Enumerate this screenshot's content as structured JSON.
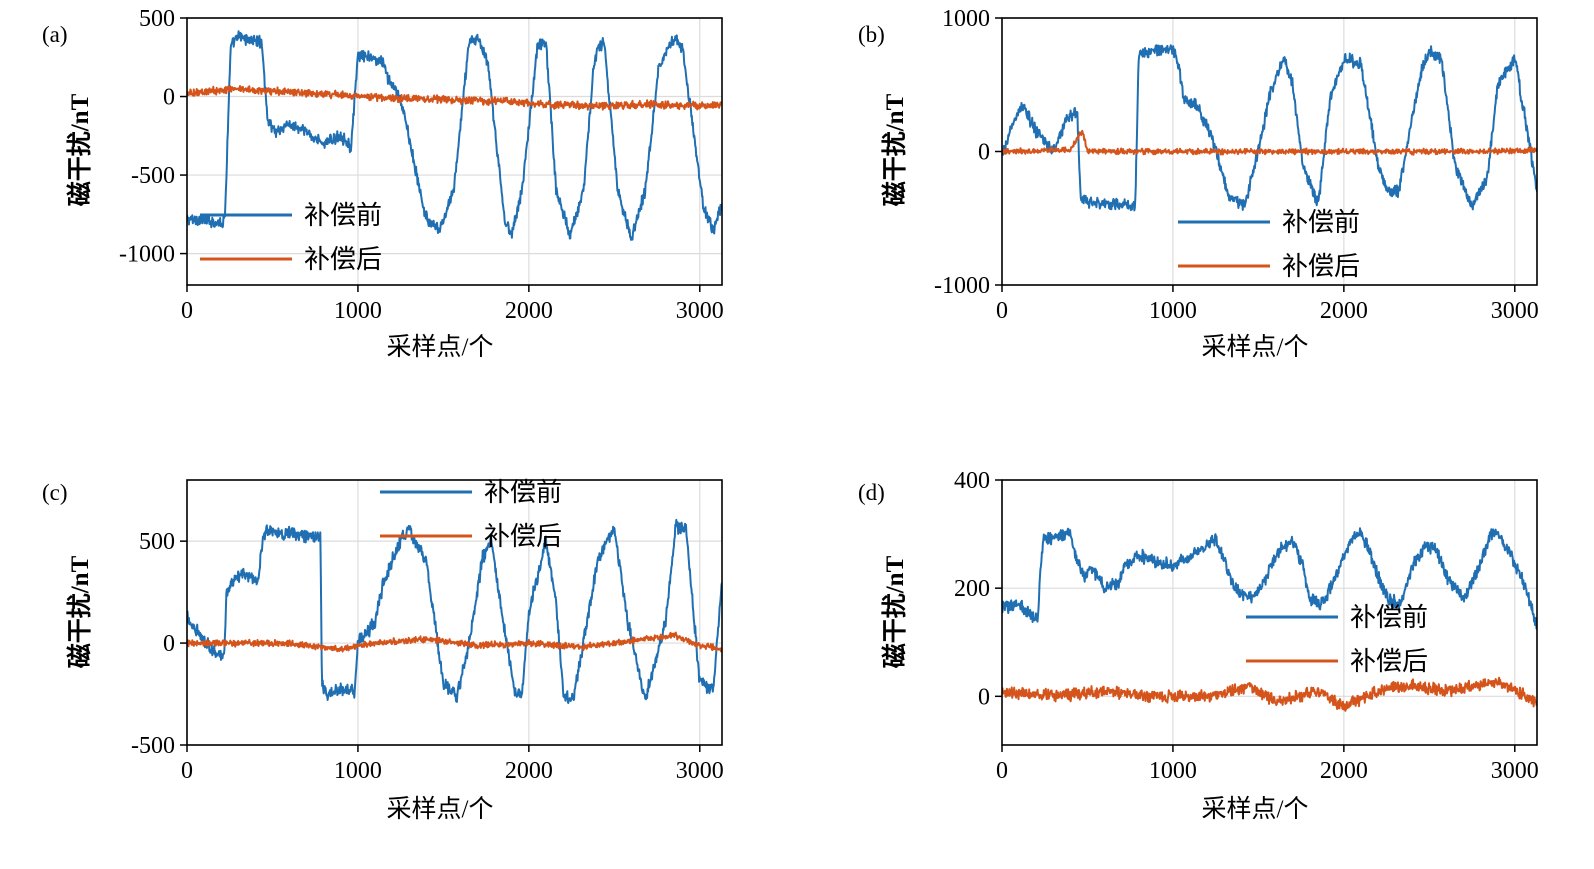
{
  "chart_data": [
    {
      "type": "line",
      "panel_label": "(a)",
      "xlabel": "采样点/个",
      "ylabel": "磁干扰/nT",
      "xlim": [
        0,
        3130
      ],
      "ylim": [
        -1200,
        500
      ],
      "xticks": [
        0,
        1000,
        2000,
        3000
      ],
      "yticks": [
        500,
        0,
        -500,
        -1000
      ],
      "grid": true,
      "legend_position": "lower-center",
      "series": [
        {
          "name": "补偿前",
          "color": "#1f6fb2",
          "noise": 45,
          "x": [
            0,
            210,
            222,
            255,
            300,
            420,
            440,
            470,
            520,
            600,
            700,
            800,
            900,
            960,
            1000,
            1020,
            1150,
            1180,
            1220,
            1270,
            1380,
            1420,
            1480,
            1560,
            1650,
            1700,
            1760,
            1860,
            1900,
            1960,
            2050,
            2100,
            2160,
            2240,
            2320,
            2380,
            2400,
            2440,
            2520,
            2600,
            2680,
            2760,
            2860,
            2900,
            2960,
            3020,
            3080,
            3130
          ],
          "y": [
            -780,
            -800,
            -760,
            310,
            380,
            350,
            330,
            -150,
            -220,
            -180,
            -230,
            -300,
            -250,
            -320,
            250,
            260,
            220,
            100,
            50,
            -100,
            -700,
            -820,
            -850,
            -600,
            350,
            380,
            200,
            -800,
            -870,
            -600,
            320,
            350,
            -600,
            -880,
            -600,
            200,
            300,
            350,
            -600,
            -900,
            -600,
            200,
            380,
            300,
            -200,
            -700,
            -850,
            -680
          ]
        },
        {
          "name": "补偿后",
          "color": "#d4541b",
          "noise": 28,
          "x": [
            0,
            300,
            600,
            900,
            1200,
            1500,
            1800,
            2100,
            2400,
            2700,
            3000,
            3130
          ],
          "y": [
            20,
            50,
            30,
            10,
            -10,
            -20,
            -30,
            -50,
            -60,
            -50,
            -60,
            -50
          ]
        }
      ]
    },
    {
      "type": "line",
      "panel_label": "(b)",
      "xlabel": "采样点/个",
      "ylabel": "磁干扰/nT",
      "xlim": [
        0,
        3130
      ],
      "ylim": [
        -1000,
        1000
      ],
      "xticks": [
        0,
        1000,
        2000,
        3000
      ],
      "yticks": [
        1000,
        0,
        -1000
      ],
      "grid": true,
      "legend_position": "lower-center",
      "series": [
        {
          "name": "补偿前",
          "color": "#1f6fb2",
          "noise": 55,
          "x": [
            0,
            60,
            120,
            200,
            300,
            380,
            440,
            460,
            500,
            780,
            800,
            820,
            1000,
            1040,
            1060,
            1100,
            1150,
            1230,
            1330,
            1420,
            1500,
            1570,
            1650,
            1700,
            1760,
            1850,
            1920,
            2000,
            2100,
            2200,
            2260,
            2320,
            2450,
            2500,
            2570,
            2650,
            2750,
            2840,
            2900,
            3000,
            3080,
            3130
          ],
          "y": [
            -50,
            200,
            350,
            150,
            0,
            250,
            300,
            -350,
            -380,
            -400,
            720,
            740,
            780,
            600,
            400,
            380,
            320,
            100,
            -350,
            -400,
            0,
            450,
            700,
            500,
            -100,
            -400,
            400,
            700,
            650,
            -100,
            -300,
            -300,
            600,
            750,
            700,
            -100,
            -400,
            -200,
            500,
            700,
            100,
            -300
          ]
        },
        {
          "name": "补偿后",
          "color": "#d4541b",
          "noise": 25,
          "x": [
            0,
            400,
            470,
            500,
            800,
            1200,
            1600,
            2000,
            2400,
            2800,
            3130
          ],
          "y": [
            0,
            10,
            150,
            0,
            0,
            0,
            0,
            0,
            0,
            0,
            10
          ]
        }
      ]
    },
    {
      "type": "line",
      "panel_label": "(c)",
      "xlabel": "采样点/个",
      "ylabel": "磁干扰/nT",
      "xlim": [
        0,
        3130
      ],
      "ylim": [
        -500,
        800
      ],
      "xticks": [
        0,
        1000,
        2000,
        3000
      ],
      "yticks": [
        500,
        0,
        -500
      ],
      "grid": true,
      "legend_position": "top-center",
      "series": [
        {
          "name": "补偿前",
          "color": "#1f6fb2",
          "noise": 40,
          "x": [
            0,
            100,
            160,
            200,
            218,
            230,
            330,
            420,
            440,
            460,
            780,
            790,
            810,
            900,
            980,
            1000,
            1100,
            1150,
            1250,
            1300,
            1400,
            1500,
            1580,
            1650,
            1730,
            1780,
            1850,
            1920,
            1960,
            2000,
            2100,
            2160,
            2200,
            2260,
            2340,
            2400,
            2450,
            2500,
            2580,
            2680,
            2800,
            2860,
            2920,
            3000,
            3080,
            3130
          ],
          "y": [
            120,
            20,
            -50,
            -60,
            -60,
            250,
            350,
            300,
            500,
            550,
            520,
            -200,
            -250,
            -230,
            -240,
            0,
            100,
            300,
            500,
            560,
            400,
            -200,
            -260,
            0,
            420,
            500,
            100,
            -250,
            -260,
            150,
            500,
            200,
            -250,
            -280,
            100,
            400,
            500,
            550,
            100,
            -280,
            100,
            580,
            550,
            -200,
            -230,
            300
          ]
        },
        {
          "name": "补偿后",
          "color": "#d4541b",
          "noise": 18,
          "x": [
            0,
            300,
            600,
            900,
            1100,
            1400,
            1700,
            2000,
            2300,
            2600,
            2850,
            3000,
            3130
          ],
          "y": [
            0,
            0,
            0,
            -30,
            0,
            20,
            -10,
            0,
            -20,
            10,
            40,
            -10,
            -30
          ]
        }
      ]
    },
    {
      "type": "line",
      "panel_label": "(d)",
      "xlabel": "采样点/个",
      "ylabel": "磁干扰/nT",
      "xlim": [
        0,
        3130
      ],
      "ylim": [
        -90,
        400
      ],
      "xticks": [
        0,
        1000,
        2000,
        3000
      ],
      "yticks": [
        400,
        200,
        0
      ],
      "grid": true,
      "legend_position": "center-right",
      "series": [
        {
          "name": "补偿前",
          "color": "#1f6fb2",
          "noise": 14,
          "x": [
            0,
            100,
            210,
            220,
            240,
            400,
            430,
            480,
            520,
            600,
            680,
            720,
            800,
            900,
            1000,
            1100,
            1200,
            1250,
            1300,
            1360,
            1430,
            1500,
            1560,
            1620,
            1700,
            1760,
            1800,
            1880,
            1960,
            2040,
            2100,
            2150,
            2200,
            2260,
            2330,
            2400,
            2480,
            2540,
            2600,
            2700,
            2780,
            2860,
            2900,
            2960,
            3040,
            3130
          ],
          "y": [
            165,
            170,
            140,
            210,
            290,
            300,
            260,
            220,
            240,
            200,
            210,
            240,
            260,
            250,
            240,
            260,
            280,
            290,
            250,
            200,
            180,
            190,
            230,
            270,
            290,
            240,
            180,
            170,
            230,
            290,
            300,
            270,
            220,
            180,
            170,
            240,
            280,
            270,
            220,
            180,
            230,
            300,
            300,
            270,
            220,
            130
          ]
        },
        {
          "name": "补偿后",
          "color": "#d4541b",
          "noise": 13,
          "x": [
            0,
            300,
            600,
            900,
            1200,
            1450,
            1600,
            1850,
            1950,
            2000,
            2200,
            2400,
            2600,
            2800,
            2900,
            3000,
            3130
          ],
          "y": [
            10,
            0,
            10,
            0,
            0,
            20,
            -10,
            10,
            -10,
            -20,
            10,
            20,
            10,
            20,
            30,
            10,
            -10
          ]
        }
      ]
    }
  ]
}
